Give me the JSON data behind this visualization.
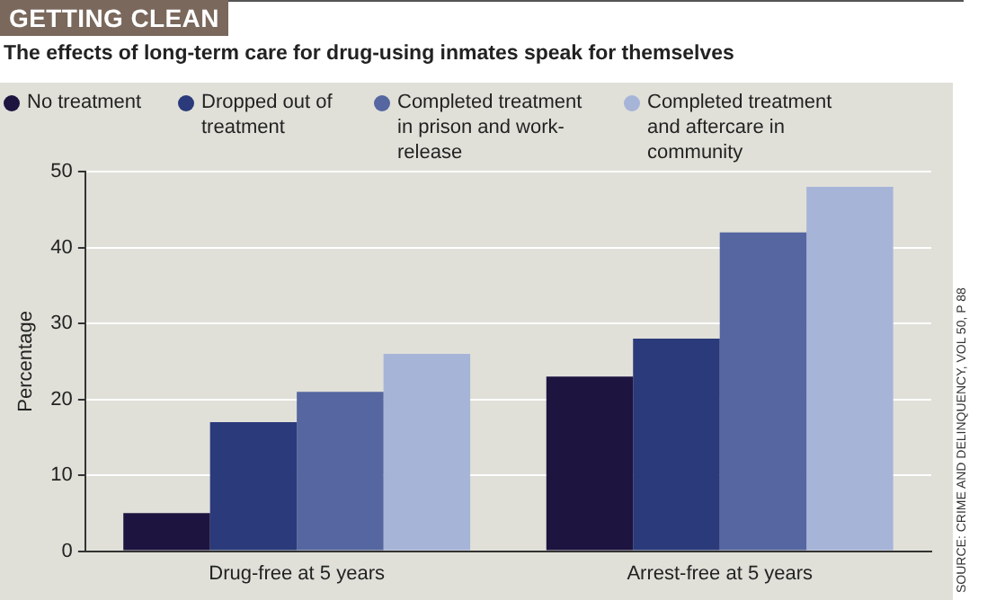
{
  "chart_data": {
    "type": "bar",
    "title": "GETTING CLEAN",
    "subtitle": "The effects of long-term care for drug-using inmates speak for themselves",
    "ylabel": "Percentage",
    "categories": [
      "Drug-free at 5 years",
      "Arrest-free at 5 years"
    ],
    "series": [
      {
        "name": "No treatment",
        "color": "#1e1440",
        "values": [
          5,
          23
        ]
      },
      {
        "name": "Dropped out of treatment",
        "color": "#2a3a7a",
        "values": [
          17,
          28
        ]
      },
      {
        "name": "Completed treatment in prison and work-release",
        "color": "#5566a0",
        "values": [
          21,
          42
        ]
      },
      {
        "name": "Completed treatment and aftercare in community",
        "color": "#a6b4d8",
        "values": [
          26,
          48
        ]
      }
    ],
    "ylim": [
      0,
      50
    ],
    "yticks": [
      0,
      10,
      20,
      30,
      40,
      50
    ],
    "grid": "y",
    "legend": "top",
    "annotations": [
      "SOURCE: CRIME AND DELINQUENCY, VOL 50, P 88"
    ]
  }
}
